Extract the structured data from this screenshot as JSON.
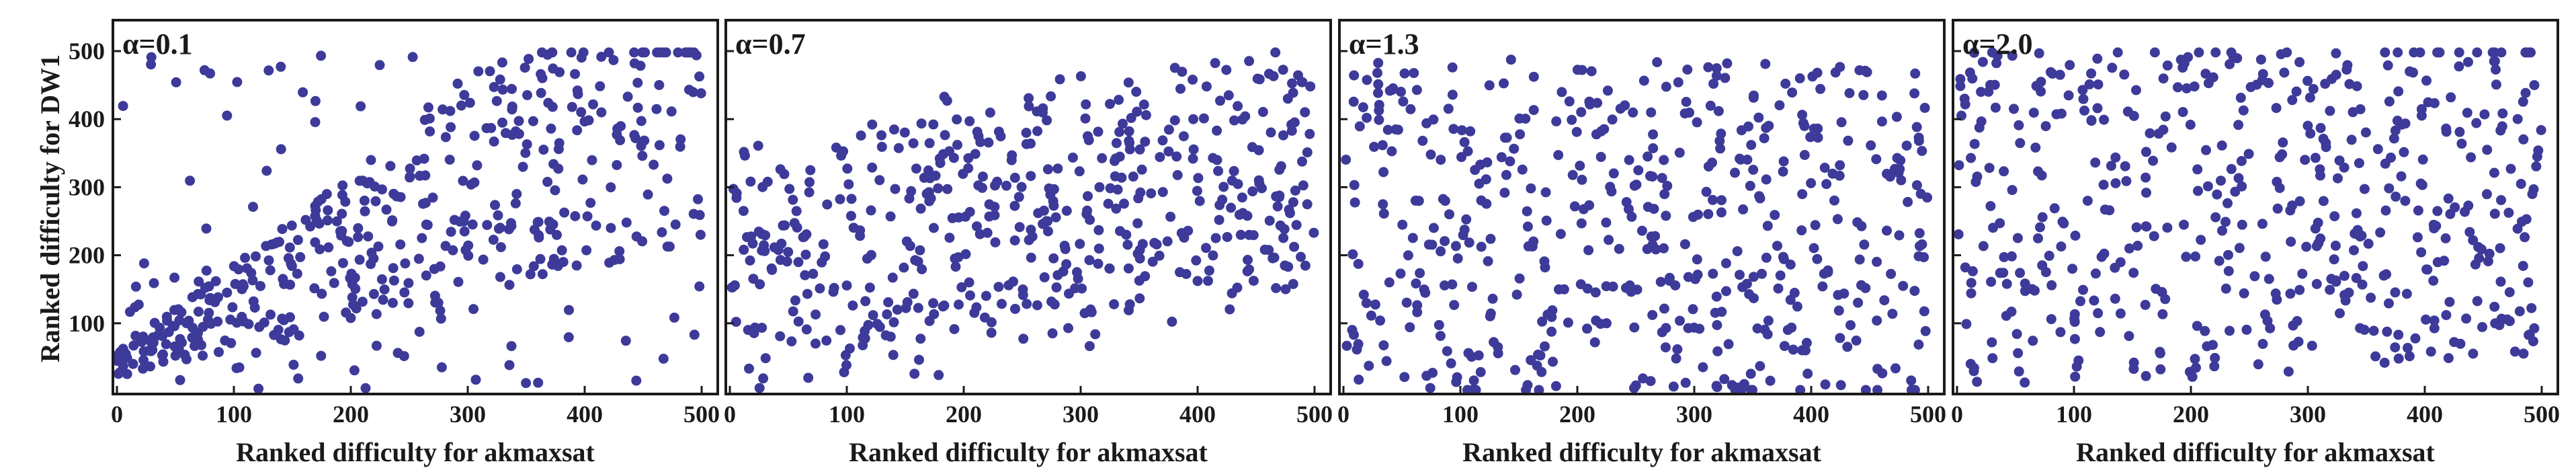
{
  "figure": {
    "ylabel": "Ranked difficulty for DW1"
  },
  "colors": {
    "point": "#3d3a9a",
    "frame": "#1a1a1a",
    "background": "#ffffff"
  },
  "chart_data": [
    {
      "type": "scatter",
      "title": "α=0.1",
      "xlabel": "Ranked difficulty for akmaxsat",
      "ylabel": "Ranked difficulty for DW1",
      "xlim": [
        0,
        500
      ],
      "ylim": [
        0,
        500
      ],
      "xticks": [
        "0",
        "100",
        "200",
        "300",
        "400",
        "500"
      ],
      "yticks": [
        "100",
        "200",
        "300",
        "400",
        "500"
      ],
      "grid": false,
      "correlation_hint": 0.75,
      "points": 500
    },
    {
      "type": "scatter",
      "title": "α=0.7",
      "xlabel": "Ranked difficulty for akmaxsat",
      "ylabel": "",
      "xlim": [
        0,
        500
      ],
      "ylim": [
        0,
        500
      ],
      "xticks": [
        "0",
        "100",
        "200",
        "300",
        "400",
        "500"
      ],
      "yticks": [],
      "grid": false,
      "correlation_hint": 0.3,
      "points": 500
    },
    {
      "type": "scatter",
      "title": "α=1.3",
      "xlabel": "Ranked difficulty for akmaxsat",
      "ylabel": "",
      "xlim": [
        0,
        500
      ],
      "ylim": [
        0,
        500
      ],
      "xticks": [
        "0",
        "100",
        "200",
        "300",
        "400",
        "500"
      ],
      "yticks": [],
      "grid": false,
      "correlation_hint": -0.05,
      "points": 500
    },
    {
      "type": "scatter",
      "title": "α=2.0",
      "xlabel": "Ranked difficulty for akmaxsat",
      "ylabel": "",
      "xlim": [
        0,
        500
      ],
      "ylim": [
        0,
        500
      ],
      "xticks": [
        "0",
        "100",
        "200",
        "300",
        "400",
        "500"
      ],
      "yticks": [],
      "grid": false,
      "correlation_hint": 0.1,
      "points": 500
    }
  ]
}
